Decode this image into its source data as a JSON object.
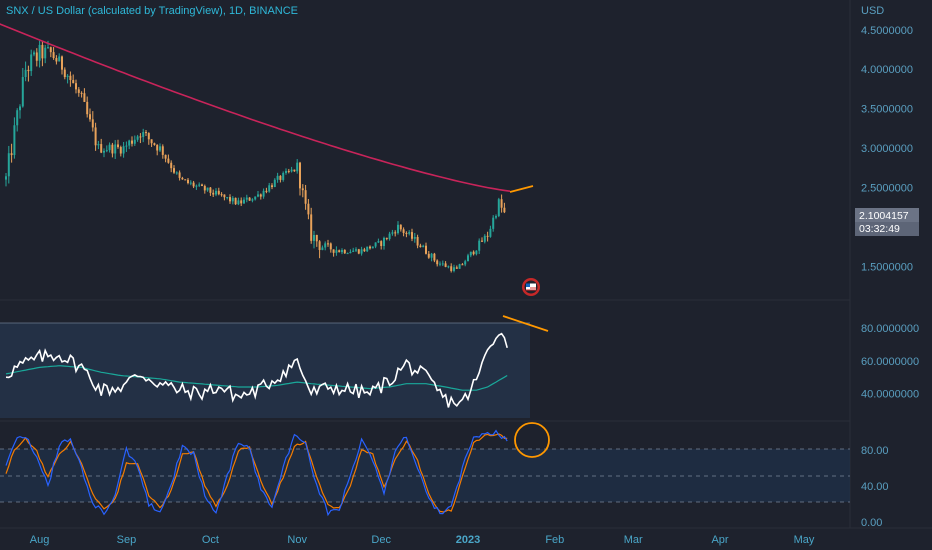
{
  "header": {
    "title": "SNX / US Dollar (calculated by TradingView), 1D, BINANCE",
    "currency": "USD"
  },
  "price_tag": {
    "price": "2.1004157",
    "countdown": "03:32:49"
  },
  "colors": {
    "background": "#1e222d",
    "candle_up": "#26a69a",
    "candle_down": "#e8a25a",
    "ma": "#c8245a",
    "rsi_line": "#ffffff",
    "rsi_ma": "#1aa89a",
    "stoch_k": "#2962ff",
    "stoch_d": "#f57c00",
    "annotation": "#ff9800",
    "axis_text": "#5a9fc0"
  },
  "chart_data": [
    {
      "type": "candlestick",
      "name": "price",
      "y_axis_ticks": [
        "4.5000000",
        "4.0000000",
        "3.5000000",
        "3.0000000",
        "2.5000000",
        "1.5000000"
      ],
      "ylim": [
        1.2,
        4.7
      ],
      "moving_average_start": 4.6,
      "moving_average_end": 2.45,
      "data": [
        {
          "x": "Jul 20",
          "low": 2.3,
          "high": 2.9,
          "close": 2.6
        },
        {
          "x": "Jul 27",
          "low": 3.5,
          "high": 4.45,
          "close": 4.0
        },
        {
          "x": "Aug 1",
          "low": 3.6,
          "high": 4.3,
          "close": 4.2
        },
        {
          "x": "Aug 5",
          "low": 3.8,
          "high": 4.4,
          "close": 4.2
        },
        {
          "x": "Aug 10",
          "low": 3.9,
          "high": 4.35,
          "close": 4.0
        },
        {
          "x": "Aug 16",
          "low": 3.4,
          "high": 4.1,
          "close": 3.6
        },
        {
          "x": "Aug 22",
          "low": 2.8,
          "high": 3.3,
          "close": 3.0
        },
        {
          "x": "Aug 31",
          "low": 2.9,
          "high": 3.2,
          "close": 3.0
        },
        {
          "x": "Sep 6",
          "low": 3.0,
          "high": 3.6,
          "close": 3.2
        },
        {
          "x": "Sep 13",
          "low": 2.8,
          "high": 3.1,
          "close": 3.0
        },
        {
          "x": "Sep 20",
          "low": 2.55,
          "high": 2.85,
          "close": 2.6
        },
        {
          "x": "Sep 27",
          "low": 2.4,
          "high": 2.65,
          "close": 2.5
        },
        {
          "x": "Oct 4",
          "low": 2.3,
          "high": 2.55,
          "close": 2.4
        },
        {
          "x": "Oct 11",
          "low": 2.2,
          "high": 2.45,
          "close": 2.3
        },
        {
          "x": "Oct 18",
          "low": 2.3,
          "high": 2.55,
          "close": 2.4
        },
        {
          "x": "Oct 25",
          "low": 2.45,
          "high": 2.75,
          "close": 2.6
        },
        {
          "x": "Nov 1",
          "low": 2.55,
          "high": 2.8,
          "close": 2.75
        },
        {
          "x": "Nov 6",
          "low": 1.8,
          "high": 2.6,
          "close": 1.9
        },
        {
          "x": "Nov 10",
          "low": 1.55,
          "high": 1.95,
          "close": 1.75
        },
        {
          "x": "Nov 17",
          "low": 1.6,
          "high": 1.85,
          "close": 1.7
        },
        {
          "x": "Nov 24",
          "low": 1.6,
          "high": 1.8,
          "close": 1.7
        },
        {
          "x": "Dec 1",
          "low": 1.7,
          "high": 1.95,
          "close": 1.8
        },
        {
          "x": "Dec 7",
          "low": 1.8,
          "high": 2.1,
          "close": 2.0
        },
        {
          "x": "Dec 14",
          "low": 1.7,
          "high": 2.0,
          "close": 1.8
        },
        {
          "x": "Dec 21",
          "low": 1.5,
          "high": 1.75,
          "close": 1.55
        },
        {
          "x": "Dec 28",
          "low": 1.4,
          "high": 1.6,
          "close": 1.45
        },
        {
          "x": "Jan 3",
          "low": 1.5,
          "high": 1.75,
          "close": 1.7
        },
        {
          "x": "Jan 8",
          "low": 1.7,
          "high": 2.0,
          "close": 1.9
        },
        {
          "x": "Jan 12",
          "low": 2.0,
          "high": 2.45,
          "close": 2.3
        },
        {
          "x": "Jan 15",
          "low": 2.0,
          "high": 2.4,
          "close": 2.1
        }
      ]
    },
    {
      "type": "line",
      "name": "rsi",
      "y_axis_ticks": [
        "80.0000000",
        "60.0000000",
        "40.0000000"
      ],
      "ylim": [
        25,
        85
      ],
      "x": [
        "Jul 20",
        "Jul 26",
        "Aug 1",
        "Aug 8",
        "Aug 16",
        "Aug 23",
        "Aug 30",
        "Sep 6",
        "Sep 13",
        "Sep 20",
        "Sep 27",
        "Oct 4",
        "Oct 11",
        "Oct 18",
        "Oct 25",
        "Nov 1",
        "Nov 6",
        "Nov 13",
        "Nov 20",
        "Nov 27",
        "Dec 4",
        "Dec 10",
        "Dec 17",
        "Dec 24",
        "Dec 30",
        "Jan 4",
        "Jan 8",
        "Jan 12",
        "Jan 15"
      ],
      "values": [
        52,
        58,
        62,
        64,
        56,
        42,
        44,
        52,
        46,
        42,
        40,
        44,
        38,
        42,
        50,
        60,
        40,
        44,
        42,
        40,
        48,
        58,
        50,
        36,
        34,
        48,
        66,
        80,
        68
      ],
      "ma_values": [
        52,
        54,
        56,
        57,
        56,
        53,
        51,
        50,
        49,
        47,
        46,
        45,
        44,
        44,
        45,
        47,
        46,
        45,
        44,
        43,
        44,
        46,
        46,
        44,
        42,
        42,
        44,
        48,
        51
      ]
    },
    {
      "type": "line",
      "name": "stoch",
      "y_axis_ticks": [
        "80.00",
        "40.00",
        "0.00"
      ],
      "ylim": [
        0,
        100
      ],
      "x": [
        "Jul 20",
        "Jul 23",
        "Jul 27",
        "Jul 31",
        "Aug 4",
        "Aug 8",
        "Aug 12",
        "Aug 16",
        "Aug 20",
        "Aug 24",
        "Aug 28",
        "Sep 1",
        "Sep 5",
        "Sep 9",
        "Sep 13",
        "Sep 17",
        "Sep 21",
        "Sep 25",
        "Sep 29",
        "Oct 3",
        "Oct 7",
        "Oct 11",
        "Oct 15",
        "Oct 19",
        "Oct 23",
        "Oct 27",
        "Oct 31",
        "Nov 4",
        "Nov 8",
        "Nov 12",
        "Nov 16",
        "Nov 20",
        "Nov 24",
        "Nov 28",
        "Dec 2",
        "Dec 6",
        "Dec 10",
        "Dec 14",
        "Dec 18",
        "Dec 22",
        "Dec 26",
        "Dec 30",
        "Jan 3",
        "Jan 7",
        "Jan 11",
        "Jan 15"
      ],
      "k": [
        60,
        90,
        95,
        70,
        40,
        85,
        92,
        60,
        20,
        10,
        30,
        80,
        60,
        20,
        10,
        40,
        85,
        75,
        30,
        10,
        50,
        90,
        80,
        35,
        15,
        60,
        95,
        85,
        40,
        10,
        15,
        50,
        90,
        70,
        30,
        80,
        95,
        60,
        25,
        10,
        15,
        60,
        95,
        98,
        100,
        90
      ],
      "d": [
        55,
        80,
        92,
        78,
        50,
        75,
        88,
        65,
        30,
        15,
        25,
        65,
        65,
        30,
        15,
        35,
        75,
        78,
        40,
        18,
        40,
        80,
        82,
        45,
        20,
        50,
        85,
        88,
        50,
        18,
        15,
        40,
        80,
        75,
        38,
        70,
        90,
        68,
        30,
        12,
        12,
        50,
        88,
        96,
        98,
        93
      ]
    }
  ],
  "x_axis": [
    "Aug",
    "Sep",
    "Oct",
    "Nov",
    "Dec",
    "2023",
    "Feb",
    "Mar",
    "Apr",
    "May"
  ]
}
